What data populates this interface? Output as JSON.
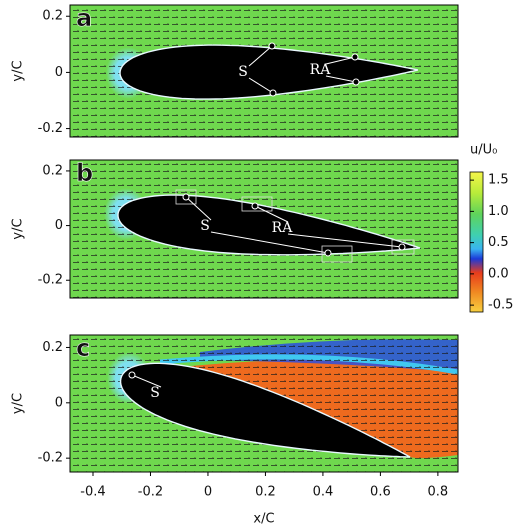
{
  "chart_data": [
    {
      "type": "vector-field",
      "panel_label": "a",
      "ylabel": "y/C",
      "xlim": [
        -0.48,
        0.87
      ],
      "ylim": [
        -0.23,
        0.24
      ],
      "yticks": [
        0.2,
        0,
        -0.2
      ],
      "annotations": [
        "S",
        "RA"
      ]
    },
    {
      "type": "vector-field",
      "panel_label": "b",
      "ylabel": "y/C",
      "xlim": [
        -0.48,
        0.87
      ],
      "ylim": [
        -0.265,
        0.24
      ],
      "yticks": [
        0.2,
        0,
        -0.2
      ],
      "annotations": [
        "S",
        "RA"
      ],
      "colorbar": {
        "label": "u/U₀",
        "lim": [
          -0.61,
          1.63
        ],
        "ticks": [
          1.5,
          {
            "value": 1.0,
            "label": "1.0"
          },
          0.5,
          {
            "value": 0.0,
            "label": "0.0"
          },
          -0.5
        ]
      }
    },
    {
      "type": "vector-field",
      "panel_label": "c",
      "ylabel": "y/C",
      "xlabel": "x/C",
      "xlim": [
        -0.48,
        0.87
      ],
      "ylim": [
        -0.25,
        0.245
      ],
      "yticks": [
        0.2,
        0,
        -0.2
      ],
      "xticks": [
        -0.4,
        -0.2,
        0,
        0.2,
        0.4,
        0.6,
        0.8
      ],
      "annotations": [
        "S"
      ]
    }
  ]
}
